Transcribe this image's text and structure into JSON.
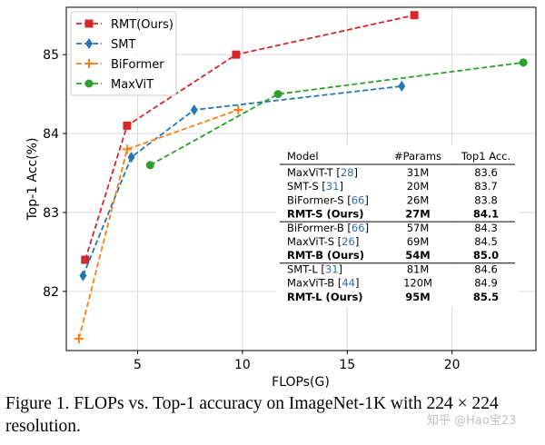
{
  "chart_data": {
    "type": "line",
    "title": "",
    "xlabel": "FLOPs(G)",
    "ylabel": "Top-1 Acc(%)",
    "xlim": [
      1.6,
      24.0
    ],
    "ylim": [
      81.25,
      85.6
    ],
    "xticks": [
      5,
      10,
      15,
      20
    ],
    "yticks": [
      82,
      83,
      84,
      85
    ],
    "grid": true,
    "legend_position": "top-left",
    "series": [
      {
        "name": "RMT(Ours)",
        "color": "#d62728",
        "marker": "square",
        "dashed": true,
        "x": [
          2.5,
          4.5,
          9.7,
          18.2
        ],
        "y": [
          82.4,
          84.1,
          85.0,
          85.5
        ]
      },
      {
        "name": "SMT",
        "color": "#1f77b4",
        "marker": "diamond",
        "dashed": true,
        "x": [
          2.4,
          4.7,
          7.7,
          17.6
        ],
        "y": [
          82.2,
          83.7,
          84.3,
          84.6
        ]
      },
      {
        "name": "BiFormer",
        "color": "#ff7f0e",
        "marker": "plus",
        "dashed": true,
        "x": [
          2.2,
          4.5,
          9.8
        ],
        "y": [
          81.4,
          83.8,
          84.3
        ]
      },
      {
        "name": "MaxViT",
        "color": "#2ca02c",
        "marker": "circle",
        "dashed": true,
        "x": [
          5.6,
          11.7,
          23.4
        ],
        "y": [
          83.6,
          84.5,
          84.9
        ]
      }
    ],
    "table": {
      "columns": [
        "Model",
        "#Params",
        "Top1 Acc."
      ],
      "rows": [
        {
          "model": "MaxViT-T",
          "ref": "28",
          "params": "31M",
          "acc": "83.6",
          "bold": false
        },
        {
          "model": "SMT-S",
          "ref": "31",
          "params": "20M",
          "acc": "83.7",
          "bold": false
        },
        {
          "model": "BiFormer-S",
          "ref": "66",
          "params": "26M",
          "acc": "83.8",
          "bold": false
        },
        {
          "model": "RMT-S (Ours)",
          "ref": "",
          "params": "27M",
          "acc": "84.1",
          "bold": true
        },
        {
          "model": "BiFormer-B",
          "ref": "66",
          "params": "57M",
          "acc": "84.3",
          "bold": false
        },
        {
          "model": "MaxViT-S",
          "ref": "26",
          "params": "69M",
          "acc": "84.5",
          "bold": false
        },
        {
          "model": "RMT-B (Ours)",
          "ref": "",
          "params": "54M",
          "acc": "85.0",
          "bold": true
        },
        {
          "model": "SMT-L",
          "ref": "31",
          "params": "81M",
          "acc": "84.6",
          "bold": false
        },
        {
          "model": "MaxViT-B",
          "ref": "44",
          "params": "120M",
          "acc": "84.9",
          "bold": false
        },
        {
          "model": "RMT-L (Ours)",
          "ref": "",
          "params": "95M",
          "acc": "85.5",
          "bold": true
        }
      ]
    }
  },
  "caption": "Figure 1. FLOPs vs. Top-1 accuracy on ImageNet-1K with 224 × 224 resolution.",
  "watermark": "知乎 @Hao宝23"
}
